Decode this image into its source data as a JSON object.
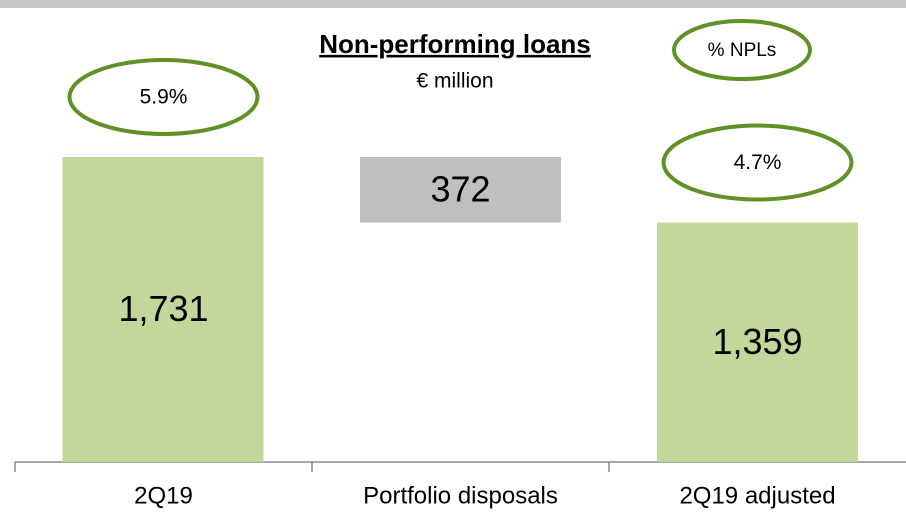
{
  "chart_data": {
    "type": "waterfall",
    "title": "Non-performing loans",
    "subtitle": "€ million",
    "categories": [
      "2Q19",
      "Portfolio disposals",
      "2Q19 adjusted"
    ],
    "values": [
      1731,
      372,
      1359
    ],
    "value_labels": [
      "1,731",
      "372",
      "1,359"
    ],
    "measures": [
      "total",
      "decrease",
      "total"
    ],
    "colors": [
      "#c4d79b",
      "#bfbfbf",
      "#c4d79b"
    ],
    "npl_labels": [
      "5.9%",
      null,
      "4.7%"
    ],
    "npl_legend": "% NPLs",
    "annotation_color": "#5f9126"
  }
}
